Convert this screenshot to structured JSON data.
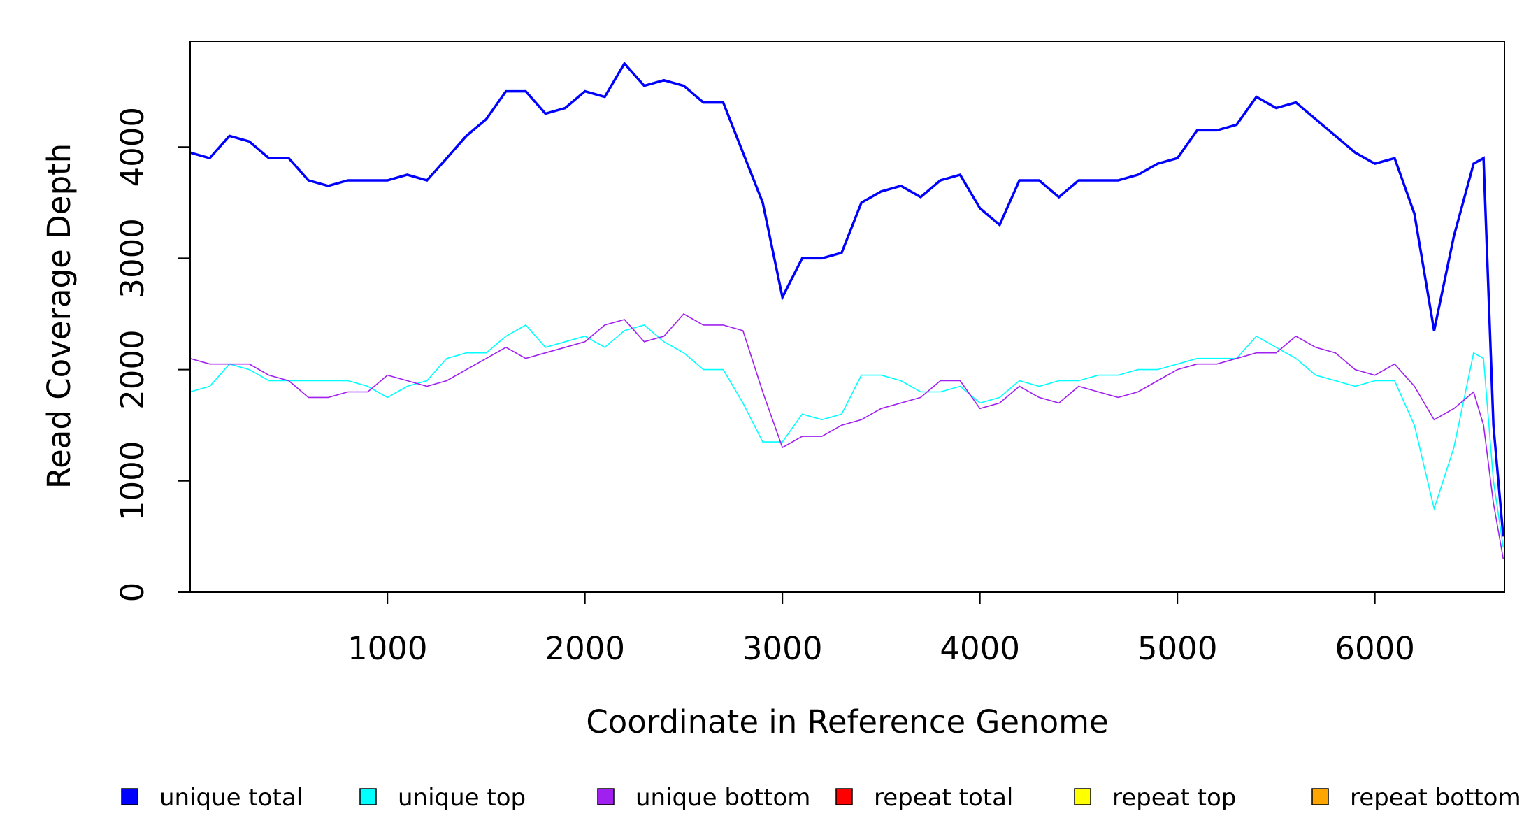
{
  "chart_data": {
    "type": "line",
    "x_label": "Coordinate in Reference Genome",
    "y_label": "Read Coverage Depth",
    "x": [
      0,
      100,
      200,
      300,
      400,
      500,
      600,
      700,
      800,
      900,
      1000,
      1100,
      1200,
      1300,
      1400,
      1500,
      1600,
      1700,
      1800,
      1900,
      2000,
      2100,
      2200,
      2300,
      2400,
      2500,
      2600,
      2700,
      2800,
      2900,
      3000,
      3100,
      3200,
      3300,
      3400,
      3500,
      3600,
      3700,
      3800,
      3900,
      4000,
      4100,
      4200,
      4300,
      4400,
      4500,
      4600,
      4700,
      4800,
      4900,
      5000,
      5100,
      5200,
      5300,
      5400,
      5500,
      5600,
      5700,
      5800,
      5900,
      6000,
      6100,
      6200,
      6300,
      6400,
      6500,
      6550,
      6600,
      6650
    ],
    "series": [
      {
        "name": "unique total",
        "color": "#0000ff",
        "values": [
          3950,
          3900,
          4100,
          4050,
          3900,
          3900,
          3700,
          3650,
          3700,
          3700,
          3700,
          3750,
          3700,
          3900,
          4100,
          4250,
          4500,
          4500,
          4300,
          4350,
          4500,
          4450,
          4750,
          4550,
          4600,
          4550,
          4400,
          4400,
          3950,
          3500,
          2650,
          3000,
          3000,
          3050,
          3500,
          3600,
          3650,
          3550,
          3700,
          3750,
          3450,
          3300,
          3700,
          3700,
          3550,
          3700,
          3700,
          3700,
          3750,
          3850,
          3900,
          4150,
          4150,
          4200,
          4450,
          4350,
          4400,
          4250,
          4100,
          3950,
          3850,
          3900,
          3400,
          2350,
          3200,
          3850,
          3900,
          1500,
          500
        ]
      },
      {
        "name": "unique top",
        "color": "#00ffff",
        "values": [
          1800,
          1850,
          2050,
          2000,
          1900,
          1900,
          1900,
          1900,
          1900,
          1850,
          1750,
          1850,
          1900,
          2100,
          2150,
          2150,
          2300,
          2400,
          2200,
          2250,
          2300,
          2200,
          2350,
          2400,
          2250,
          2150,
          2000,
          2000,
          1700,
          1350,
          1350,
          1600,
          1550,
          1600,
          1950,
          1950,
          1900,
          1800,
          1800,
          1850,
          1700,
          1750,
          1900,
          1850,
          1900,
          1900,
          1950,
          1950,
          2000,
          2000,
          2050,
          2100,
          2100,
          2100,
          2300,
          2200,
          2100,
          1950,
          1900,
          1850,
          1900,
          1900,
          1500,
          750,
          1300,
          2150,
          2100,
          1000,
          400
        ]
      },
      {
        "name": "unique bottom",
        "color": "#a020f0",
        "values": [
          2100,
          2050,
          2050,
          2050,
          1950,
          1900,
          1750,
          1750,
          1800,
          1800,
          1950,
          1900,
          1850,
          1900,
          2000,
          2100,
          2200,
          2100,
          2150,
          2200,
          2250,
          2400,
          2450,
          2250,
          2300,
          2500,
          2400,
          2400,
          2350,
          1800,
          1300,
          1400,
          1400,
          1500,
          1550,
          1650,
          1700,
          1750,
          1900,
          1900,
          1650,
          1700,
          1850,
          1750,
          1700,
          1850,
          1800,
          1750,
          1800,
          1900,
          2000,
          2050,
          2050,
          2100,
          2150,
          2150,
          2300,
          2200,
          2150,
          2000,
          1950,
          2050,
          1850,
          1550,
          1650,
          1800,
          1500,
          800,
          300
        ]
      },
      {
        "name": "repeat total",
        "color": "#ff0000",
        "values": [
          0,
          0,
          0,
          0,
          0,
          0,
          0,
          0,
          0,
          0,
          0,
          0,
          0,
          0,
          0,
          0,
          0,
          0,
          0,
          0,
          0,
          0,
          0,
          0,
          0,
          0,
          0,
          0,
          0,
          0,
          0,
          0,
          0,
          0,
          0,
          0,
          0,
          0,
          0,
          0,
          0,
          0,
          0,
          0,
          0,
          0,
          0,
          0,
          0,
          0,
          0,
          0,
          0,
          0,
          0,
          0,
          0,
          0,
          0,
          0,
          0,
          0,
          0,
          0,
          0,
          0,
          0,
          0,
          0
        ]
      },
      {
        "name": "repeat top",
        "color": "#ffff00",
        "values": [
          0,
          0,
          0,
          0,
          0,
          0,
          0,
          0,
          0,
          0,
          0,
          0,
          0,
          0,
          0,
          0,
          0,
          0,
          0,
          0,
          0,
          0,
          0,
          0,
          0,
          0,
          0,
          0,
          0,
          0,
          0,
          0,
          0,
          0,
          0,
          0,
          0,
          0,
          0,
          0,
          0,
          0,
          0,
          0,
          0,
          0,
          0,
          0,
          0,
          0,
          0,
          0,
          0,
          0,
          0,
          0,
          0,
          0,
          0,
          0,
          0,
          0,
          0,
          0,
          0,
          0,
          0,
          0,
          0
        ]
      },
      {
        "name": "repeat bottom",
        "color": "#ffa500",
        "values": [
          0,
          0,
          0,
          0,
          0,
          0,
          0,
          0,
          0,
          0,
          0,
          0,
          0,
          0,
          0,
          0,
          0,
          0,
          0,
          0,
          0,
          0,
          0,
          0,
          0,
          0,
          0,
          0,
          0,
          0,
          0,
          0,
          0,
          0,
          0,
          0,
          0,
          0,
          0,
          0,
          0,
          0,
          0,
          0,
          0,
          0,
          0,
          0,
          0,
          0,
          0,
          0,
          0,
          0,
          0,
          0,
          0,
          0,
          0,
          0,
          0,
          0,
          0,
          0,
          0,
          0,
          0,
          0,
          0
        ]
      }
    ],
    "xlim": [
      1,
      6656
    ],
    "xticks": [
      1000,
      2000,
      3000,
      4000,
      5000,
      6000
    ],
    "ylim": [
      0,
      4950
    ],
    "yticks": [
      0,
      1000,
      2000,
      3000,
      4000
    ]
  }
}
